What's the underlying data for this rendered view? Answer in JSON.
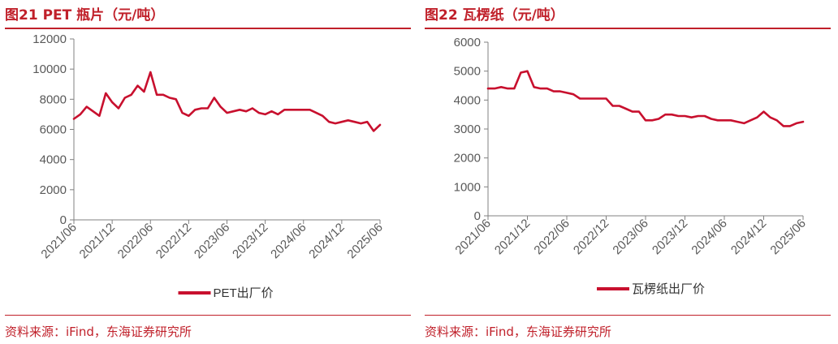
{
  "colors": {
    "accent": "#c0202a",
    "axis": "#808080",
    "text": "#595959",
    "series": "#c8102e"
  },
  "panels": [
    {
      "title": "图21  PET 瓶片（元/吨）",
      "source": "资料来源：iFind，东海证券研究所",
      "chart_data": {
        "type": "line",
        "title": "图21  PET 瓶片（元/吨）",
        "ylim": [
          0,
          12000
        ],
        "yticks": [
          "0",
          "2000",
          "4000",
          "6000",
          "8000",
          "10000",
          "12000"
        ],
        "xlim": [
          "2021-06",
          "2025-06"
        ],
        "xticks": [
          "2021/06",
          "2021/12",
          "2022/06",
          "2022/12",
          "2023/06",
          "2023/12",
          "2024/06",
          "2024/12",
          "2025/06"
        ],
        "legend": "bottom-center",
        "grid": false,
        "series": [
          {
            "name": "PET出厂价",
            "x": [
              "2021-06",
              "2021-07",
              "2021-08",
              "2021-09",
              "2021-10",
              "2021-11",
              "2021-12",
              "2022-01",
              "2022-02",
              "2022-03",
              "2022-04",
              "2022-05",
              "2022-06",
              "2022-07",
              "2022-08",
              "2022-09",
              "2022-10",
              "2022-11",
              "2022-12",
              "2023-01",
              "2023-02",
              "2023-03",
              "2023-04",
              "2023-05",
              "2023-06",
              "2023-07",
              "2023-08",
              "2023-09",
              "2023-10",
              "2023-11",
              "2023-12",
              "2024-01",
              "2024-02",
              "2024-03",
              "2024-04",
              "2024-05",
              "2024-06",
              "2024-07",
              "2024-08",
              "2024-09",
              "2024-10",
              "2024-11",
              "2024-12",
              "2025-01",
              "2025-02",
              "2025-03",
              "2025-04",
              "2025-05",
              "2025-06"
            ],
            "values": [
              6700,
              7000,
              7500,
              7200,
              6900,
              8400,
              7800,
              7400,
              8100,
              8300,
              8900,
              8500,
              9800,
              8300,
              8300,
              8100,
              8000,
              7100,
              6900,
              7300,
              7400,
              7400,
              8100,
              7500,
              7100,
              7200,
              7300,
              7200,
              7400,
              7100,
              7000,
              7200,
              7000,
              7300,
              7300,
              7300,
              7300,
              7300,
              7100,
              6900,
              6500,
              6400,
              6500,
              6600,
              6500,
              6400,
              6500,
              5900,
              6300
            ]
          }
        ]
      }
    },
    {
      "title": "图22  瓦楞纸（元/吨）",
      "source": "资料来源：iFind，东海证券研究所",
      "chart_data": {
        "type": "line",
        "title": "图22  瓦楞纸（元/吨）",
        "ylim": [
          0,
          6000
        ],
        "yticks": [
          "0",
          "1000",
          "2000",
          "3000",
          "4000",
          "5000",
          "6000"
        ],
        "xlim": [
          "2021-06",
          "2025-06"
        ],
        "xticks": [
          "2021/06",
          "2021/12",
          "2022/06",
          "2022/12",
          "2023/06",
          "2023/12",
          "2024/06",
          "2024/12",
          "2025/06"
        ],
        "legend": "bottom-center",
        "grid": false,
        "series": [
          {
            "name": "瓦楞纸出厂价",
            "x": [
              "2021-06",
              "2021-07",
              "2021-08",
              "2021-09",
              "2021-10",
              "2021-11",
              "2021-12",
              "2022-01",
              "2022-02",
              "2022-03",
              "2022-04",
              "2022-05",
              "2022-06",
              "2022-07",
              "2022-08",
              "2022-09",
              "2022-10",
              "2022-11",
              "2022-12",
              "2023-01",
              "2023-02",
              "2023-03",
              "2023-04",
              "2023-05",
              "2023-06",
              "2023-07",
              "2023-08",
              "2023-09",
              "2023-10",
              "2023-11",
              "2023-12",
              "2024-01",
              "2024-02",
              "2024-03",
              "2024-04",
              "2024-05",
              "2024-06",
              "2024-07",
              "2024-08",
              "2024-09",
              "2024-10",
              "2024-11",
              "2024-12",
              "2025-01",
              "2025-02",
              "2025-03",
              "2025-04",
              "2025-05",
              "2025-06"
            ],
            "values": [
              4400,
              4400,
              4450,
              4400,
              4400,
              4950,
              5000,
              4450,
              4400,
              4400,
              4300,
              4300,
              4250,
              4200,
              4050,
              4050,
              4050,
              4050,
              4050,
              3800,
              3800,
              3700,
              3600,
              3600,
              3300,
              3300,
              3350,
              3500,
              3500,
              3450,
              3450,
              3400,
              3450,
              3450,
              3350,
              3300,
              3300,
              3300,
              3250,
              3200,
              3300,
              3400,
              3600,
              3400,
              3300,
              3100,
              3100,
              3200,
              3250
            ]
          }
        ]
      }
    }
  ]
}
